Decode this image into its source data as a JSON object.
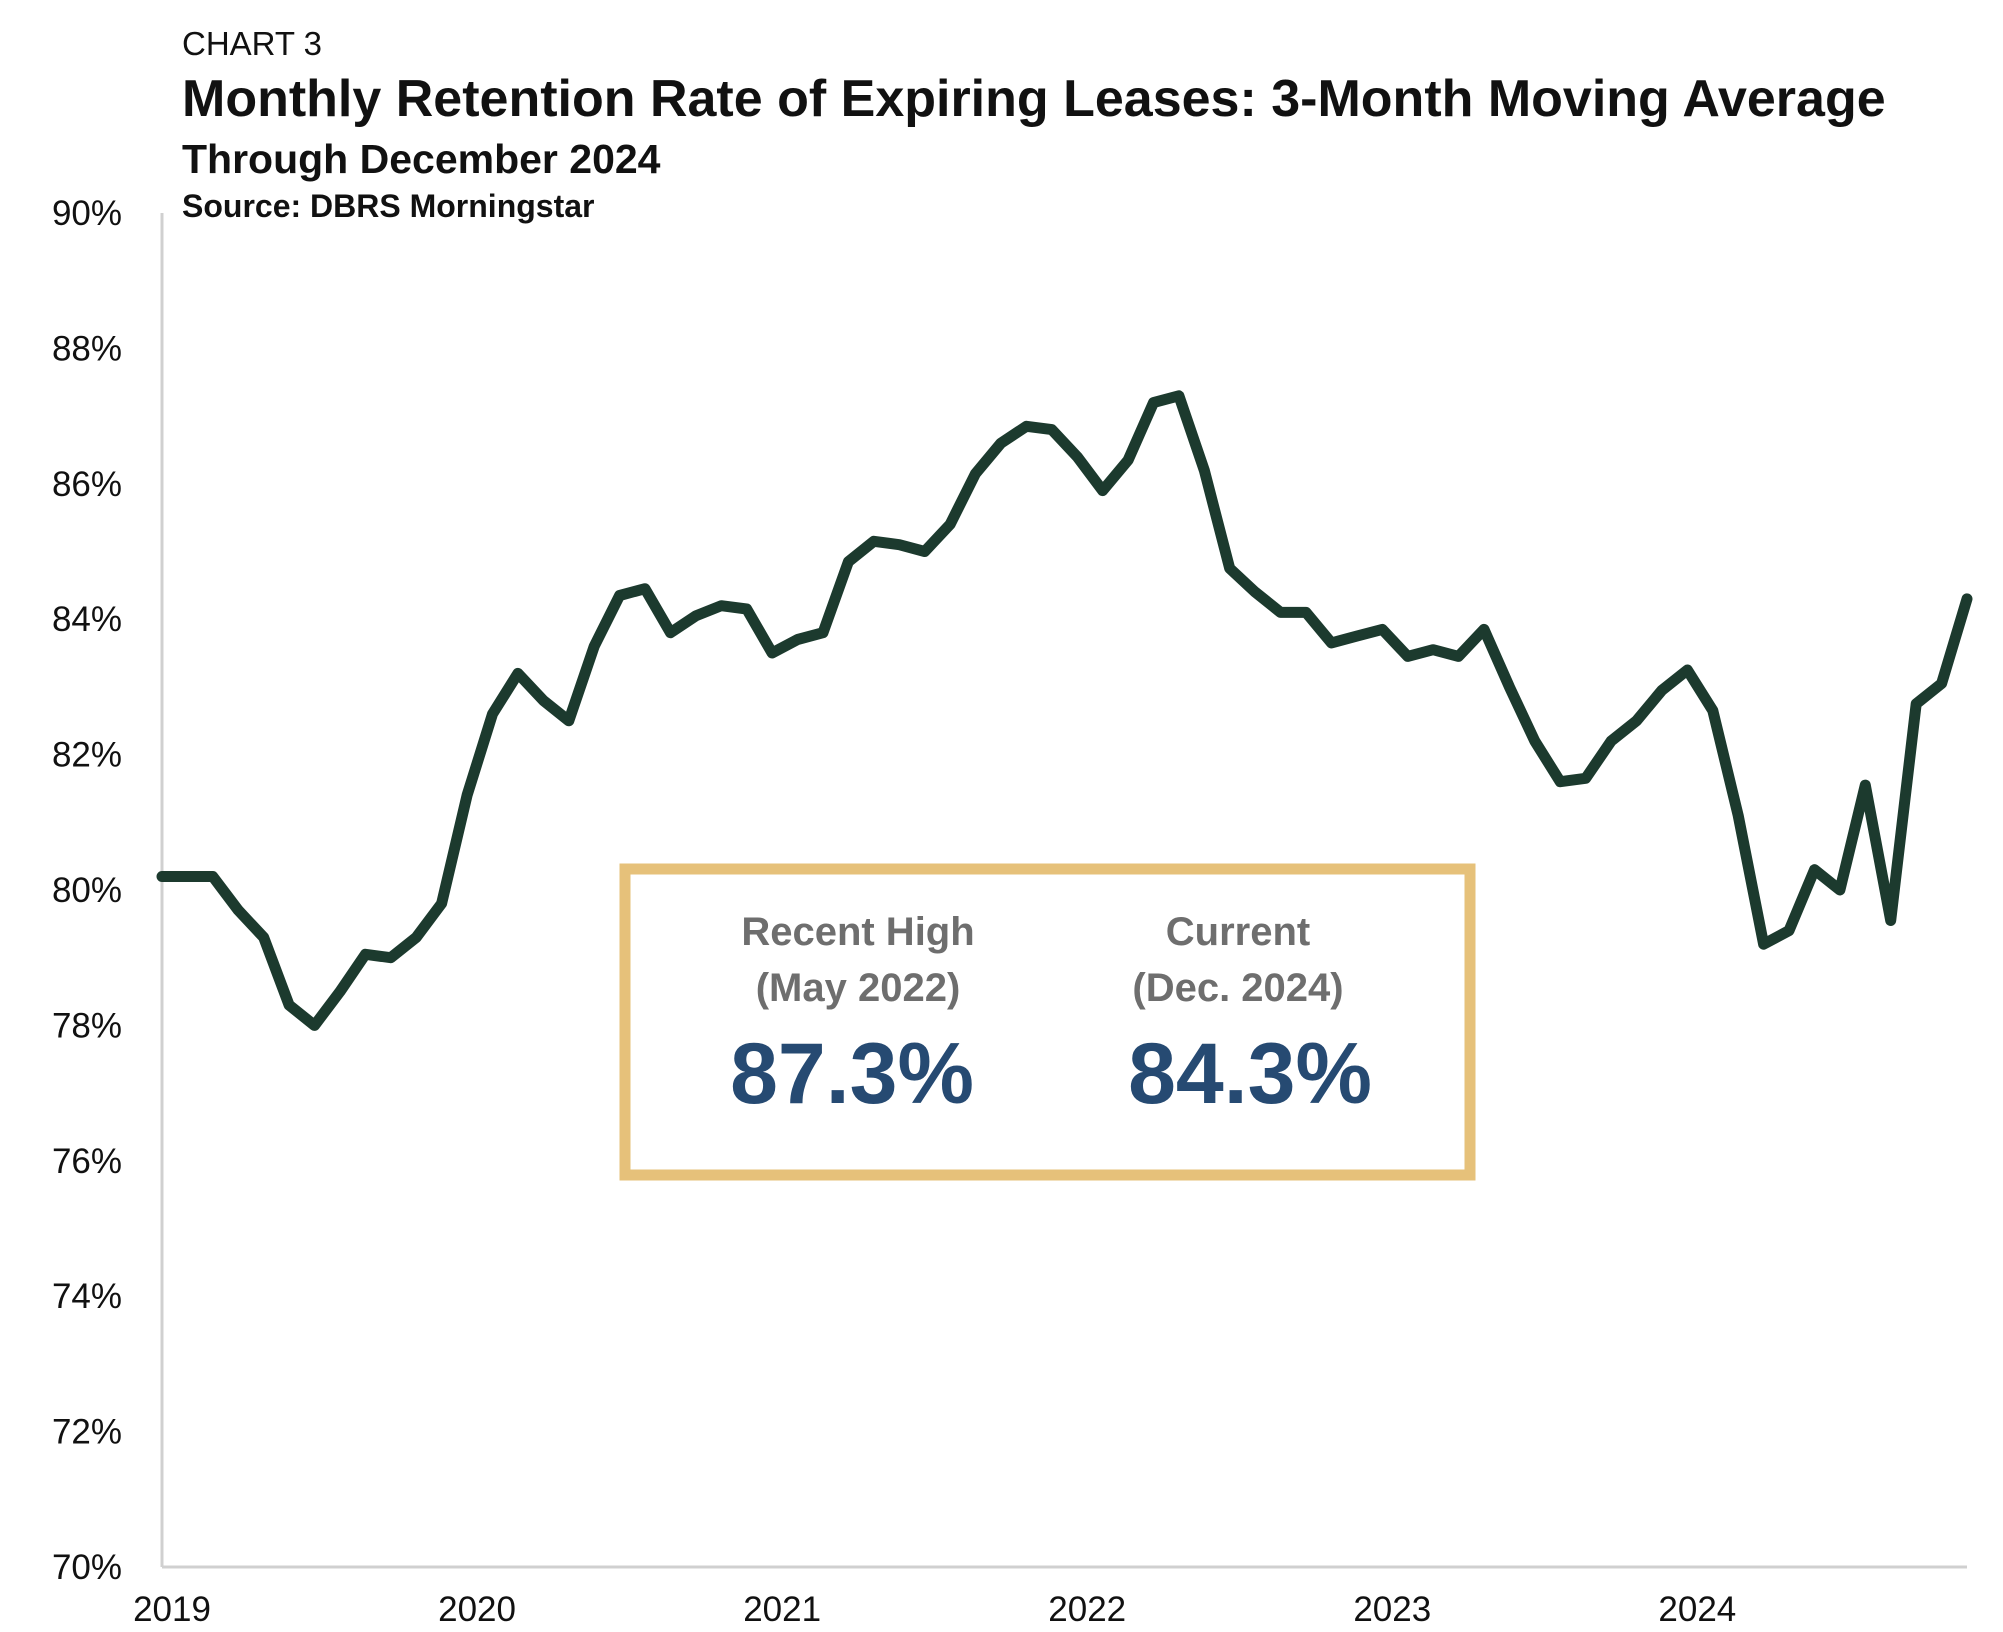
{
  "header": {
    "label": "CHART 3",
    "title": "Monthly Retention Rate of Expiring Leases: 3-Month Moving Average",
    "subtitle": "Through December 2024",
    "source": "Source: DBRS Morningstar"
  },
  "callout": {
    "high": {
      "label": "Recent High",
      "date": "(May 2022)",
      "value": "87.3%"
    },
    "current": {
      "label": "Current",
      "date": "(Dec. 2024)",
      "value": "84.3%"
    }
  },
  "colors": {
    "line": "#1c3a2e",
    "callout_border": "#e6c17a",
    "callout_value": "#264a72",
    "callout_label": "#6e6e6e",
    "axis": "#d0d0d0"
  },
  "chart_data": {
    "type": "line",
    "x": [
      "2019-01",
      "2019-02",
      "2019-03",
      "2019-04",
      "2019-05",
      "2019-06",
      "2019-07",
      "2019-08",
      "2019-09",
      "2019-10",
      "2019-11",
      "2019-12",
      "2020-01",
      "2020-02",
      "2020-03",
      "2020-04",
      "2020-05",
      "2020-06",
      "2020-07",
      "2020-08",
      "2020-09",
      "2020-10",
      "2020-11",
      "2020-12",
      "2021-01",
      "2021-02",
      "2021-03",
      "2021-04",
      "2021-05",
      "2021-06",
      "2021-07",
      "2021-08",
      "2021-09",
      "2021-10",
      "2021-11",
      "2021-12",
      "2022-01",
      "2022-02",
      "2022-03",
      "2022-04",
      "2022-05",
      "2022-06",
      "2022-07",
      "2022-08",
      "2022-09",
      "2022-10",
      "2022-11",
      "2022-12",
      "2023-01",
      "2023-02",
      "2023-03",
      "2023-04",
      "2023-05",
      "2023-06",
      "2023-07",
      "2023-08",
      "2023-09",
      "2023-10",
      "2023-11",
      "2023-12",
      "2024-01",
      "2024-02",
      "2024-03",
      "2024-04",
      "2024-05",
      "2024-06",
      "2024-07",
      "2024-08",
      "2024-09",
      "2024-10",
      "2024-11",
      "2024-12"
    ],
    "series": [
      {
        "values": [
          80.2,
          80.2,
          80.2,
          79.7,
          79.3,
          78.3,
          78.0,
          78.5,
          79.05,
          79.0,
          79.3,
          79.8,
          81.4,
          82.6,
          83.2,
          82.8,
          82.5,
          83.6,
          84.35,
          84.45,
          83.8,
          84.05,
          84.2,
          84.15,
          83.5,
          83.7,
          83.8,
          84.85,
          85.15,
          85.1,
          85.0,
          85.4,
          86.15,
          86.6,
          86.85,
          86.8,
          86.4,
          85.9,
          86.35,
          87.2,
          87.3,
          86.2,
          84.75,
          84.4,
          84.1,
          84.1,
          83.65,
          83.75,
          83.85,
          83.45,
          83.55,
          83.45,
          83.85,
          83.0,
          82.2,
          81.6,
          81.65,
          82.2,
          82.5,
          82.95,
          83.25,
          82.65,
          81.1,
          79.2,
          79.4,
          80.3,
          80.0,
          81.55,
          79.55,
          82.75,
          83.05,
          84.3
        ]
      }
    ],
    "xticks": [
      "2019",
      "2020",
      "2021",
      "2022",
      "2023",
      "2024"
    ],
    "yticks": [
      "70%",
      "72%",
      "74%",
      "76%",
      "78%",
      "80%",
      "82%",
      "84%",
      "86%",
      "88%",
      "90%"
    ],
    "ylim": [
      70,
      90
    ],
    "xlabel": "",
    "ylabel": "",
    "grid": false
  }
}
